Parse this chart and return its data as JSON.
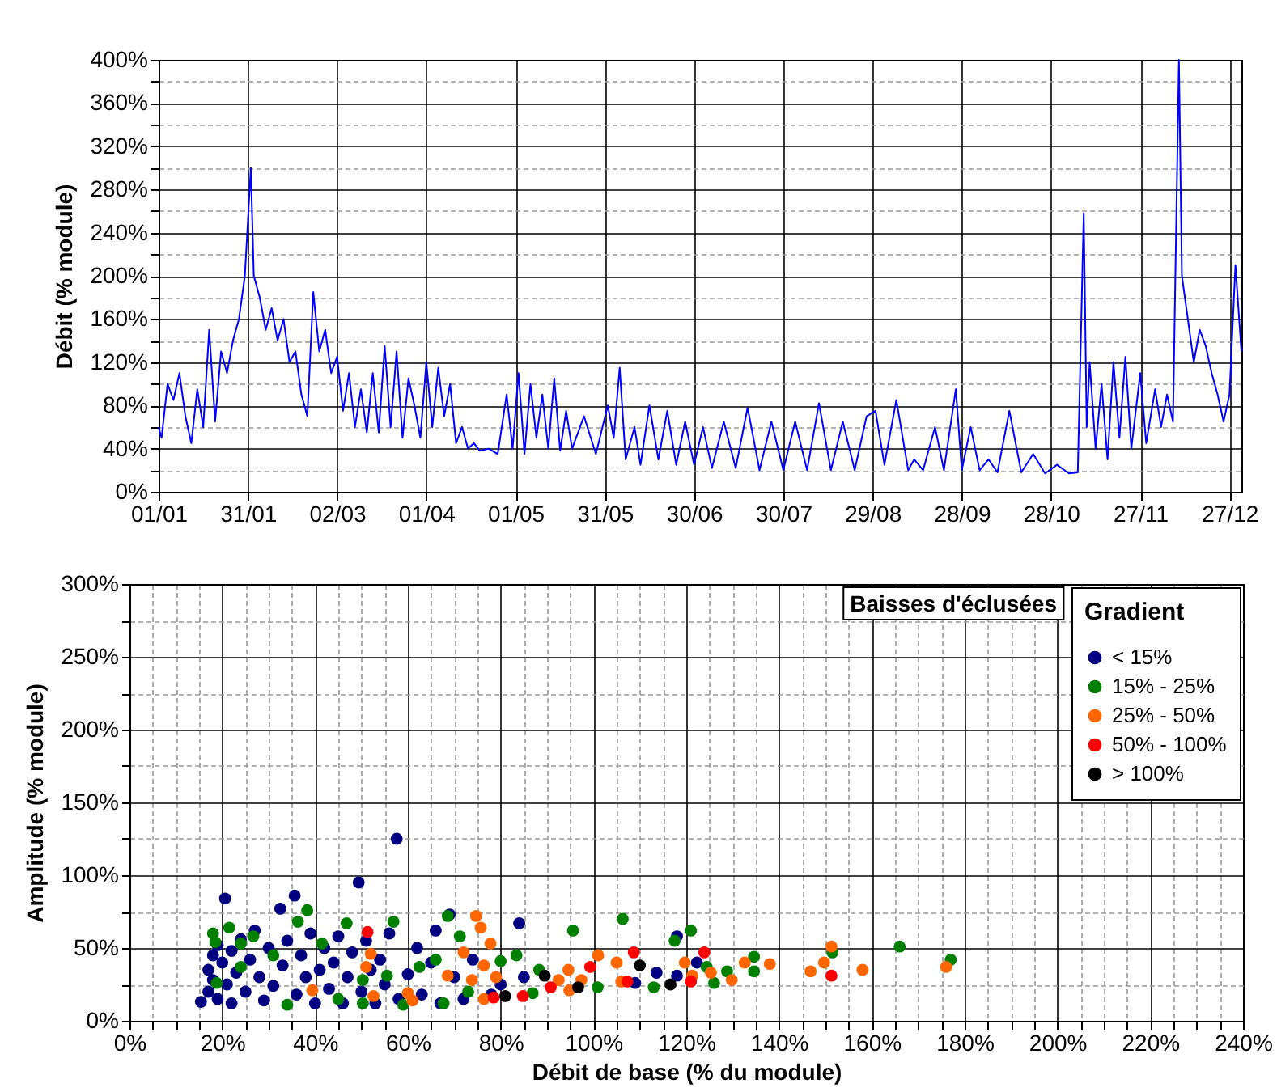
{
  "chart_data": [
    {
      "type": "line",
      "ylabel": "Débit (% module)",
      "grid": true,
      "line_style": "solid",
      "xlim": [
        "--01-01",
        "--12-31"
      ],
      "xticks": [
        {
          "value": "--01-01",
          "label": "01/01"
        },
        {
          "value": "--01-31",
          "label": "31/01"
        },
        {
          "value": "--03-02",
          "label": "02/03"
        },
        {
          "value": "--04-01",
          "label": "01/04"
        },
        {
          "value": "--05-01",
          "label": "01/05"
        },
        {
          "value": "--05-31",
          "label": "31/05"
        },
        {
          "value": "--06-30",
          "label": "30/06"
        },
        {
          "value": "--07-30",
          "label": "30/07"
        },
        {
          "value": "--08-29",
          "label": "29/08"
        },
        {
          "value": "--09-28",
          "label": "28/09"
        },
        {
          "value": "--10-28",
          "label": "28/10"
        },
        {
          "value": "--11-27",
          "label": "27/11"
        },
        {
          "value": "--12-27",
          "label": "27/12"
        }
      ],
      "ylim": [
        0,
        400
      ],
      "yticks": [
        {
          "value": 0,
          "label": "0%"
        },
        {
          "value": 20,
          "label": null
        },
        {
          "value": 40,
          "label": "40%"
        },
        {
          "value": 60,
          "label": null
        },
        {
          "value": 80,
          "label": "80%"
        },
        {
          "value": 100,
          "label": null
        },
        {
          "value": 120,
          "label": "120%"
        },
        {
          "value": 140,
          "label": null
        },
        {
          "value": 160,
          "label": "160%"
        },
        {
          "value": 180,
          "label": null
        },
        {
          "value": 200,
          "label": "200%"
        },
        {
          "value": 220,
          "label": null
        },
        {
          "value": 240,
          "label": "240%"
        },
        {
          "value": 260,
          "label": null
        },
        {
          "value": 280,
          "label": "280%"
        },
        {
          "value": 300,
          "label": null
        },
        {
          "value": 320,
          "label": "320%"
        },
        {
          "value": 340,
          "label": null
        },
        {
          "value": 360,
          "label": "360%"
        },
        {
          "value": 380,
          "label": null
        },
        {
          "value": 400,
          "label": "400%"
        }
      ],
      "series": [
        {
          "color": "#0000ff",
          "x": [
            "--01-01",
            "--01-02",
            "--01-04",
            "--01-06",
            "--01-08",
            "--01-10",
            "--01-12",
            "--01-14",
            "--01-16",
            "--01-18",
            "--01-20",
            "--01-22",
            "--01-24",
            "--01-26",
            "--01-28",
            "--01-30",
            "--01-31",
            "--02-01",
            "--02-02",
            "--02-04",
            "--02-06",
            "--02-08",
            "--02-10",
            "--02-12",
            "--02-14",
            "--02-16",
            "--02-18",
            "--02-20",
            "--02-22",
            "--02-24",
            "--02-26",
            "--02-28",
            "--03-02",
            "--03-04",
            "--03-06",
            "--03-08",
            "--03-10",
            "--03-12",
            "--03-14",
            "--03-16",
            "--03-18",
            "--03-20",
            "--03-22",
            "--03-24",
            "--03-26",
            "--03-28",
            "--03-30",
            "--04-01",
            "--04-03",
            "--04-05",
            "--04-07",
            "--04-09",
            "--04-11",
            "--04-13",
            "--04-15",
            "--04-17",
            "--04-19",
            "--04-22",
            "--04-25",
            "--04-28",
            "--04-30",
            "--05-02",
            "--05-04",
            "--05-06",
            "--05-08",
            "--05-10",
            "--05-12",
            "--05-14",
            "--05-16",
            "--05-18",
            "--05-20",
            "--05-24",
            "--05-28",
            "--06-01",
            "--06-03",
            "--06-05",
            "--06-07",
            "--06-10",
            "--06-12",
            "--06-15",
            "--06-18",
            "--06-21",
            "--06-24",
            "--06-27",
            "--06-30",
            "--07-03",
            "--07-06",
            "--07-10",
            "--07-14",
            "--07-18",
            "--07-22",
            "--07-26",
            "--07-30",
            "--08-03",
            "--08-07",
            "--08-11",
            "--08-15",
            "--08-19",
            "--08-23",
            "--08-27",
            "--08-30",
            "--09-02",
            "--09-06",
            "--09-10",
            "--09-12",
            "--09-15",
            "--09-19",
            "--09-22",
            "--09-26",
            "--09-28",
            "--10-01",
            "--10-04",
            "--10-07",
            "--10-10",
            "--10-14",
            "--10-18",
            "--10-22",
            "--10-26",
            "--10-30",
            "--11-03",
            "--11-06",
            "--11-08",
            "--11-09",
            "--11-10",
            "--11-12",
            "--11-14",
            "--11-16",
            "--11-18",
            "--11-20",
            "--11-22",
            "--11-24",
            "--11-27",
            "--11-29",
            "--12-02",
            "--12-04",
            "--12-06",
            "--12-08",
            "--12-10",
            "--12-11",
            "--12-13",
            "--12-15",
            "--12-17",
            "--12-19",
            "--12-21",
            "--12-23",
            "--12-25",
            "--12-27",
            "--12-29",
            "--12-31"
          ],
          "values": [
            60,
            50,
            100,
            85,
            110,
            70,
            45,
            95,
            60,
            150,
            65,
            130,
            110,
            140,
            160,
            200,
            250,
            300,
            200,
            180,
            150,
            170,
            140,
            160,
            120,
            130,
            90,
            70,
            185,
            130,
            150,
            110,
            125,
            75,
            110,
            60,
            95,
            55,
            110,
            55,
            135,
            60,
            130,
            50,
            105,
            80,
            50,
            120,
            60,
            115,
            70,
            100,
            45,
            60,
            40,
            45,
            38,
            40,
            35,
            90,
            40,
            110,
            35,
            100,
            50,
            90,
            40,
            105,
            38,
            75,
            40,
            70,
            35,
            80,
            50,
            115,
            30,
            60,
            25,
            80,
            30,
            75,
            25,
            65,
            25,
            60,
            22,
            65,
            22,
            78,
            20,
            65,
            20,
            65,
            20,
            82,
            20,
            65,
            20,
            70,
            75,
            25,
            85,
            20,
            30,
            20,
            60,
            20,
            95,
            20,
            60,
            20,
            30,
            18,
            75,
            18,
            35,
            17,
            25,
            17,
            18,
            258,
            60,
            120,
            40,
            100,
            30,
            120,
            50,
            125,
            40,
            110,
            45,
            95,
            60,
            90,
            65,
            400,
            200,
            160,
            120,
            150,
            135,
            110,
            90,
            65,
            90,
            210,
            130
          ]
        }
      ]
    },
    {
      "type": "scatter",
      "xlabel": "Débit de base (% du module)",
      "ylabel": "Amplitude (% module)",
      "legend_title": "Gradient",
      "legend": "top right",
      "marker": "circle",
      "grid": true,
      "annotations": [
        "Baisses d'éclusées"
      ],
      "xlim": [
        0,
        240
      ],
      "xticks": [
        {
          "value": 0,
          "label": "0%"
        },
        {
          "value": 5,
          "label": null
        },
        {
          "value": 10,
          "label": null
        },
        {
          "value": 15,
          "label": null
        },
        {
          "value": 20,
          "label": "20%"
        },
        {
          "value": 25,
          "label": null
        },
        {
          "value": 30,
          "label": null
        },
        {
          "value": 35,
          "label": null
        },
        {
          "value": 40,
          "label": "40%"
        },
        {
          "value": 45,
          "label": null
        },
        {
          "value": 50,
          "label": null
        },
        {
          "value": 55,
          "label": null
        },
        {
          "value": 60,
          "label": "60%"
        },
        {
          "value": 65,
          "label": null
        },
        {
          "value": 70,
          "label": null
        },
        {
          "value": 75,
          "label": null
        },
        {
          "value": 80,
          "label": "80%"
        },
        {
          "value": 85,
          "label": null
        },
        {
          "value": 90,
          "label": null
        },
        {
          "value": 95,
          "label": null
        },
        {
          "value": 100,
          "label": "100%"
        },
        {
          "value": 105,
          "label": null
        },
        {
          "value": 110,
          "label": null
        },
        {
          "value": 115,
          "label": null
        },
        {
          "value": 120,
          "label": "120%"
        },
        {
          "value": 125,
          "label": null
        },
        {
          "value": 130,
          "label": null
        },
        {
          "value": 135,
          "label": null
        },
        {
          "value": 140,
          "label": "140%"
        },
        {
          "value": 145,
          "label": null
        },
        {
          "value": 150,
          "label": null
        },
        {
          "value": 155,
          "label": null
        },
        {
          "value": 160,
          "label": "160%"
        },
        {
          "value": 165,
          "label": null
        },
        {
          "value": 170,
          "label": null
        },
        {
          "value": 175,
          "label": null
        },
        {
          "value": 180,
          "label": "180%"
        },
        {
          "value": 185,
          "label": null
        },
        {
          "value": 190,
          "label": null
        },
        {
          "value": 195,
          "label": null
        },
        {
          "value": 200,
          "label": "200%"
        },
        {
          "value": 205,
          "label": null
        },
        {
          "value": 210,
          "label": null
        },
        {
          "value": 215,
          "label": null
        },
        {
          "value": 220,
          "label": "220%"
        },
        {
          "value": 225,
          "label": null
        },
        {
          "value": 230,
          "label": null
        },
        {
          "value": 235,
          "label": null
        },
        {
          "value": 240,
          "label": "240%"
        }
      ],
      "ylim": [
        0,
        300
      ],
      "yticks": [
        {
          "value": 0,
          "label": "0%"
        },
        {
          "value": 25,
          "label": null
        },
        {
          "value": 50,
          "label": "50%"
        },
        {
          "value": 75,
          "label": null
        },
        {
          "value": 100,
          "label": "100%"
        },
        {
          "value": 125,
          "label": null
        },
        {
          "value": 150,
          "label": "150%"
        },
        {
          "value": 175,
          "label": null
        },
        {
          "value": 200,
          "label": "200%"
        },
        {
          "value": 225,
          "label": null
        },
        {
          "value": 250,
          "label": "250%"
        },
        {
          "value": 275,
          "label": null
        },
        {
          "value": 300,
          "label": "300%"
        }
      ],
      "series": [
        {
          "name": "< 15%",
          "color": "#000080",
          "x": [
            15.4,
            17,
            17,
            18,
            18,
            19,
            19,
            20,
            20.6,
            21,
            22,
            22,
            23,
            24,
            25,
            26,
            27,
            28,
            29,
            30,
            31,
            32.5,
            33,
            34,
            35.6,
            36,
            37,
            38,
            39,
            40,
            41,
            42,
            43,
            44,
            45,
            46,
            47,
            48,
            49.4,
            50,
            51,
            52,
            53,
            54,
            55,
            56,
            57.6,
            58,
            60,
            62,
            63,
            65,
            66,
            67,
            69,
            70,
            72,
            74,
            78,
            80,
            84,
            85,
            109,
            113.6,
            118,
            118,
            122.3
          ],
          "values": [
            13,
            20,
            35,
            45,
            28,
            15,
            52,
            40,
            84,
            25,
            48,
            12,
            33,
            56,
            20,
            42,
            62,
            30,
            14,
            50,
            24,
            77,
            38,
            55,
            86,
            18,
            45,
            30,
            60,
            12,
            35,
            50,
            22,
            40,
            58,
            12,
            30,
            47,
            95,
            20,
            55,
            35,
            12,
            42,
            25,
            60,
            125,
            15,
            32,
            50,
            18,
            40,
            62,
            12,
            73,
            30,
            15,
            42,
            18,
            25,
            67,
            30,
            26,
            33,
            31,
            58,
            40
          ]
        },
        {
          "name": "15% - 25%",
          "color": "#008000",
          "x": [
            18,
            21.5,
            18.5,
            24,
            26.7,
            36.3,
            38.3,
            41.5,
            46.8,
            56.9,
            68.6,
            71.2,
            83.4,
            88.3,
            95.6,
            106.3,
            121,
            117.5,
            134.6,
            134.6,
            151.5,
            166,
            177,
            113,
            126,
            124.4,
            128.8,
            100.9,
            67.7,
            59,
            50.3,
            45,
            34,
            24,
            18.8,
            31,
            62.5,
            66,
            73,
            86.9,
            80,
            50.3,
            55.5
          ],
          "values": [
            60,
            64,
            54,
            53,
            58,
            68,
            76,
            53,
            67,
            68,
            72,
            58,
            45,
            35,
            62,
            70,
            62,
            55,
            44,
            34,
            47,
            51,
            42,
            23,
            26,
            37,
            34,
            23,
            12,
            11,
            12,
            15,
            11,
            37,
            26,
            45,
            37,
            42,
            20,
            19,
            41,
            28,
            31
          ]
        },
        {
          "name": "25% - 50%",
          "color": "#ff6600",
          "x": [
            74.7,
            75.7,
            77.8,
            101,
            105,
            119.7,
            132.6,
            138,
            146.8,
            149.7,
            151.3,
            158,
            176,
            39.4,
            52,
            51,
            52.6,
            60,
            61,
            68.6,
            72,
            76.4,
            79,
            76.4,
            92.5,
            94.8,
            97.4,
            106,
            121.3,
            125.3,
            129.8,
            94.6,
            73.8
          ],
          "values": [
            72,
            64,
            53,
            45,
            40,
            40,
            40,
            39,
            34,
            40,
            51,
            35,
            37,
            21,
            46,
            37,
            17,
            19,
            14,
            31,
            47,
            38,
            30,
            15,
            28,
            21,
            28,
            27,
            31,
            33,
            28,
            35,
            28
          ]
        },
        {
          "name": "50% - 100%",
          "color": "#ff0000",
          "x": [
            51.3,
            99.3,
            108.7,
            123.9,
            151.3,
            107.3,
            121,
            84.8,
            78.5,
            90.8
          ],
          "values": [
            61,
            37,
            47,
            47,
            31,
            27,
            27,
            17,
            16,
            23
          ]
        },
        {
          "name": "> 100%",
          "color": "#000000",
          "x": [
            81,
            89.5,
            96.7,
            110,
            116.6
          ],
          "values": [
            17,
            31,
            23,
            38,
            25
          ]
        }
      ]
    }
  ]
}
